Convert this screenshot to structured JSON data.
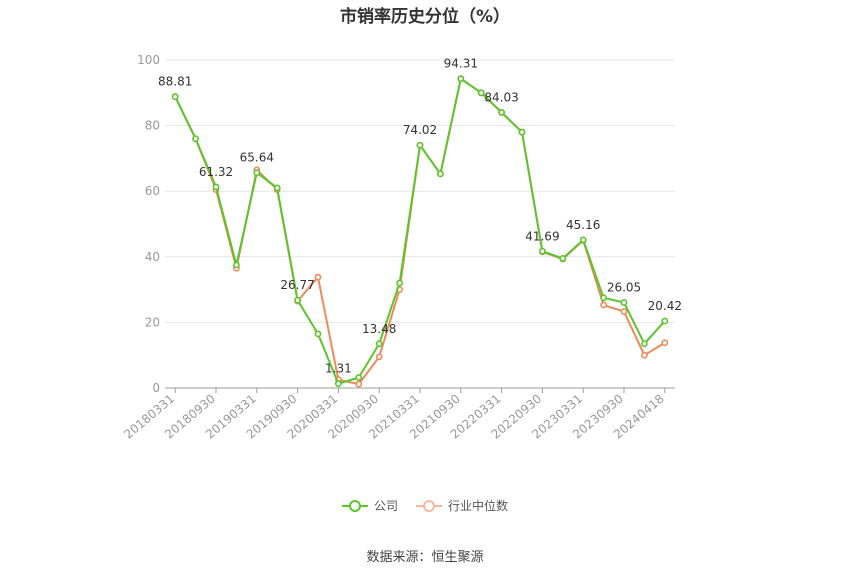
{
  "chart_data": {
    "type": "line",
    "title": "市销率历史分位（%）",
    "xlabel": "",
    "ylabel": "",
    "ylim": [
      0,
      100
    ],
    "yticks": [
      0,
      20,
      40,
      60,
      80,
      100
    ],
    "grid": true,
    "legend_position": "bottom",
    "x": [
      "20180331",
      "20180630",
      "20180930",
      "20181231",
      "20190331",
      "20190630",
      "20190930",
      "20191231",
      "20200331",
      "20200630",
      "20200930",
      "20201231",
      "20210331",
      "20210630",
      "20210930",
      "20211231",
      "20220331",
      "20220630",
      "20220930",
      "20221231",
      "20230331",
      "20230630",
      "20230930",
      "20231231",
      "20240418"
    ],
    "x_tick_labels": [
      "20180331",
      "20180930",
      "20190331",
      "20190930",
      "20200331",
      "20200930",
      "20210331",
      "20210930",
      "20220331",
      "20220930",
      "20230331",
      "20230930",
      "20240418"
    ],
    "series": [
      {
        "name": "公司",
        "color": "#5ac52c",
        "values": [
          88.81,
          76,
          61.32,
          37.5,
          65.64,
          61,
          26.77,
          16.5,
          1.31,
          3.2,
          13.48,
          32,
          74.02,
          65.3,
          94.31,
          90,
          84.03,
          78,
          41.69,
          39.5,
          45.16,
          27.5,
          26.05,
          13.5,
          20.42
        ]
      },
      {
        "name": "行业中位数",
        "color": "#f0895a",
        "values": [
          88.81,
          76,
          60.5,
          36.5,
          66.5,
          60.5,
          26.5,
          33.8,
          2.5,
          1.2,
          9.5,
          30,
          74.02,
          65.3,
          94.31,
          90,
          84.03,
          78,
          41.5,
          39.3,
          45,
          25.3,
          23.3,
          10,
          13.8
        ]
      }
    ],
    "data_labels": [
      {
        "index": 0,
        "text": "88.81"
      },
      {
        "index": 2,
        "text": "61.32"
      },
      {
        "index": 4,
        "text": "65.64"
      },
      {
        "index": 6,
        "text": "26.77"
      },
      {
        "index": 8,
        "text": "1.31"
      },
      {
        "index": 10,
        "text": "13.48"
      },
      {
        "index": 12,
        "text": "74.02"
      },
      {
        "index": 14,
        "text": "94.31"
      },
      {
        "index": 16,
        "text": "84.03"
      },
      {
        "index": 18,
        "text": "41.69"
      },
      {
        "index": 20,
        "text": "45.16"
      },
      {
        "index": 22,
        "text": "26.05"
      },
      {
        "index": 24,
        "text": "20.42"
      }
    ]
  },
  "source": "数据来源：恒生聚源"
}
